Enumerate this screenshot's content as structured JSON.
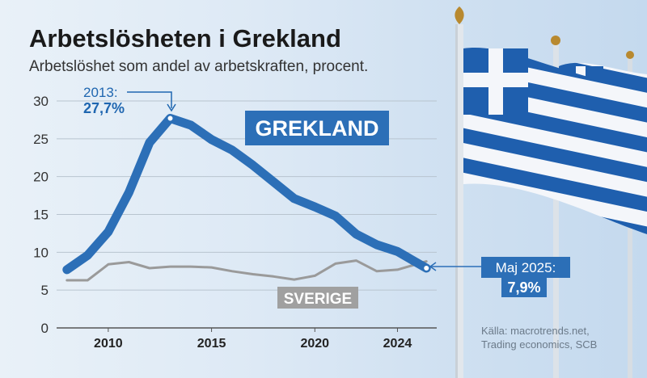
{
  "header": {
    "title": "Arbetslösheten i Grekland",
    "subtitle": "Arbetslöshet som andel av arbetskraften, procent."
  },
  "source": {
    "line1": "Källa: macrotrends.net,",
    "line2": "Trading economics, SCB"
  },
  "colors": {
    "greece": "#2c6fb7",
    "sweden": "#9a9a9a",
    "grid": "#b8c4cf",
    "accent_box": "#2c6fb7"
  },
  "annotations": {
    "peak": {
      "label": "2013:",
      "value": "27,7%"
    },
    "latest": {
      "label": "Maj 2025:",
      "value": "7,9%"
    }
  },
  "chart_data": {
    "type": "line",
    "title": "Arbetslösheten i Grekland",
    "subtitle": "Arbetslöshet som andel av arbetskraften, procent.",
    "xlabel": "",
    "ylabel": "",
    "ylim": [
      0,
      30
    ],
    "xlim": [
      2007.5,
      2025.9
    ],
    "yticks": [
      0,
      5,
      10,
      15,
      20,
      25,
      30
    ],
    "xticks": [
      2010,
      2015,
      2020,
      2024
    ],
    "grid": true,
    "series": [
      {
        "name": "GREKLAND",
        "x": [
          2008,
          2009,
          2010,
          2011,
          2012,
          2013,
          2014,
          2015,
          2016,
          2017,
          2018,
          2019,
          2020,
          2021,
          2022,
          2023,
          2024,
          2025.4
        ],
        "values": [
          7.7,
          9.6,
          12.7,
          17.9,
          24.5,
          27.7,
          26.8,
          24.9,
          23.5,
          21.5,
          19.3,
          17.1,
          16.0,
          14.8,
          12.4,
          11.0,
          10.1,
          7.9
        ]
      },
      {
        "name": "SVERIGE",
        "x": [
          2008,
          2009,
          2010,
          2011,
          2012,
          2013,
          2014,
          2015,
          2016,
          2017,
          2018,
          2019,
          2020,
          2021,
          2022,
          2023,
          2024,
          2025.4
        ],
        "values": [
          6.3,
          6.3,
          8.4,
          8.7,
          7.9,
          8.1,
          8.1,
          8.0,
          7.5,
          7.1,
          6.8,
          6.4,
          6.9,
          8.5,
          8.9,
          7.5,
          7.7,
          8.8
        ]
      }
    ]
  }
}
